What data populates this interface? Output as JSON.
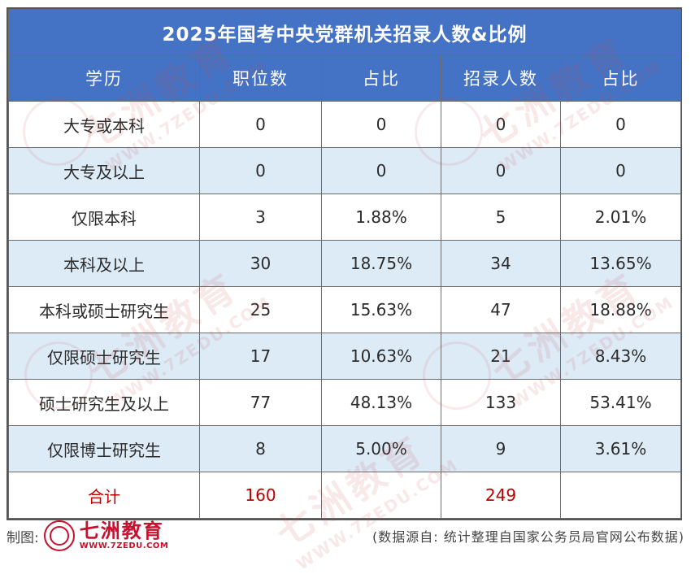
{
  "title": "2025年国考中央党群机关招录人数&比例",
  "headers": [
    "学历",
    "职位数",
    "占比",
    "招录人数",
    "占比"
  ],
  "rows": [
    {
      "edu": "大专或本科",
      "positions": "0",
      "pos_ratio": "0",
      "recruits": "0",
      "rec_ratio": "0"
    },
    {
      "edu": "大专及以上",
      "positions": "0",
      "pos_ratio": "0",
      "recruits": "0",
      "rec_ratio": "0"
    },
    {
      "edu": "仅限本科",
      "positions": "3",
      "pos_ratio": "1.88%",
      "recruits": "5",
      "rec_ratio": "2.01%"
    },
    {
      "edu": "本科及以上",
      "positions": "30",
      "pos_ratio": "18.75%",
      "recruits": "34",
      "rec_ratio": "13.65%"
    },
    {
      "edu": "本科或硕士研究生",
      "positions": "25",
      "pos_ratio": "15.63%",
      "recruits": "47",
      "rec_ratio": "18.88%"
    },
    {
      "edu": "仅限硕士研究生",
      "positions": "17",
      "pos_ratio": "10.63%",
      "recruits": "21",
      "rec_ratio": "8.43%"
    },
    {
      "edu": "硕士研究生及以上",
      "positions": "77",
      "pos_ratio": "48.13%",
      "recruits": "133",
      "rec_ratio": "53.41%"
    },
    {
      "edu": "仅限博士研究生",
      "positions": "8",
      "pos_ratio": "5.00%",
      "recruits": "9",
      "rec_ratio": "3.61%"
    }
  ],
  "total": {
    "label": "合计",
    "positions": "160",
    "recruits": "249"
  },
  "watermark": {
    "text": "七洲教育",
    "url": "WWW.7ZEDU.COM"
  },
  "footer": {
    "made_by": "制图:",
    "logo_name": "七洲教育",
    "logo_url": "WWW.7ZEDU.COM",
    "source": "(数据源自: 统计整理自国家公务员局官网公布数据)"
  },
  "colors": {
    "header_bg": "#4472c4",
    "alt_row_bg": "#ddebf7",
    "total_text": "#c00000",
    "brand": "#c8102e"
  }
}
